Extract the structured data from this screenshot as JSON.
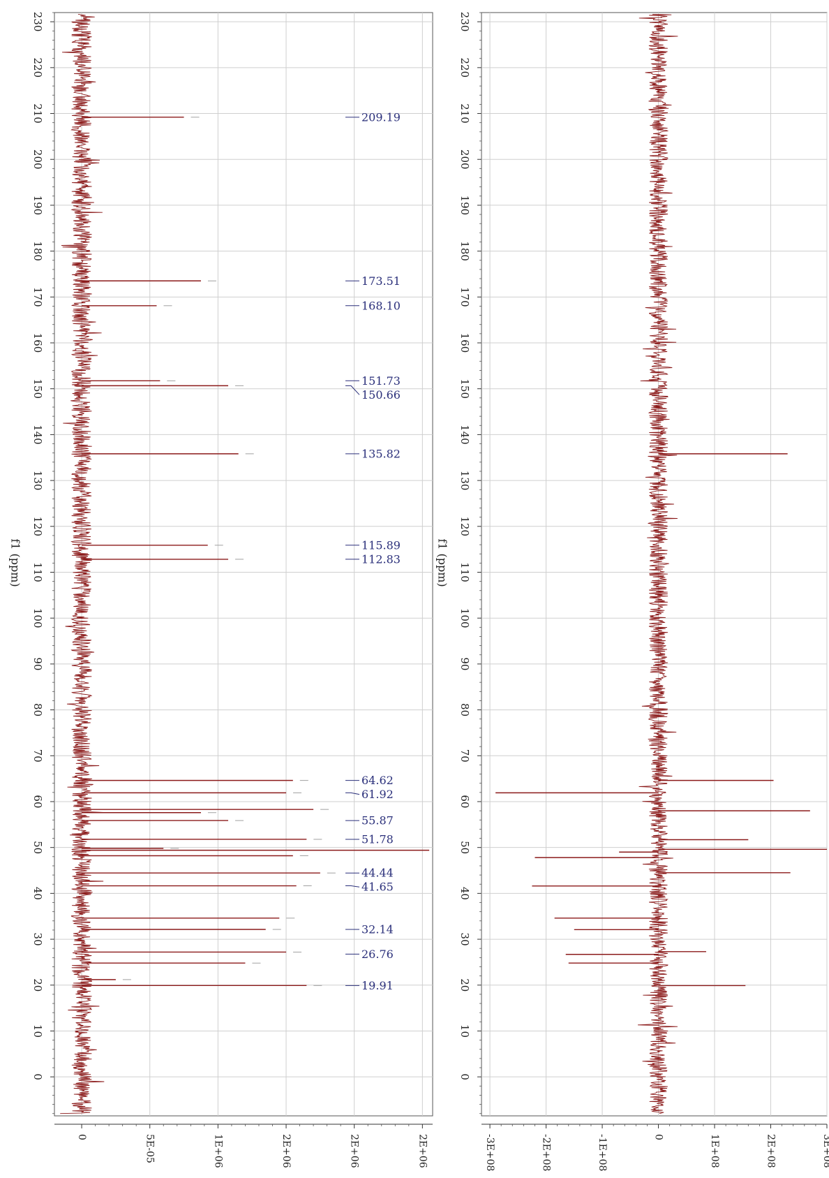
{
  "chart_data": [
    {
      "type": "line",
      "y_axis_label": "f1 (ppm)",
      "ppm_range": [
        -8.5,
        232
      ],
      "ppm_ticks": [
        230,
        220,
        210,
        200,
        190,
        180,
        170,
        160,
        150,
        140,
        130,
        120,
        110,
        100,
        90,
        80,
        70,
        60,
        50,
        40,
        30,
        20,
        10,
        0
      ],
      "intensity_ticks": [
        {
          "value": 0,
          "label": "0"
        },
        {
          "value": 1,
          "label": "5E-05"
        },
        {
          "value": 2,
          "label": "1E+06"
        },
        {
          "value": 3,
          "label": "2E+06"
        },
        {
          "value": 4,
          "label": "2E+06"
        },
        {
          "value": 5,
          "label": "2E+06"
        }
      ],
      "intensity_range": [
        -0.4,
        5.15
      ],
      "grid": true,
      "line_color": "#8b1a1a",
      "label_color": "#2a2f7a",
      "noise_amplitude": 0.15,
      "peaks": [
        {
          "ppm": 209.19,
          "value": 1.5
        },
        {
          "ppm": 173.51,
          "value": 1.75
        },
        {
          "ppm": 168.1,
          "value": 1.1
        },
        {
          "ppm": 151.73,
          "value": 1.15
        },
        {
          "ppm": 150.66,
          "value": 2.15
        },
        {
          "ppm": 135.82,
          "value": 2.3
        },
        {
          "ppm": 115.89,
          "value": 1.85
        },
        {
          "ppm": 112.83,
          "value": 2.15
        },
        {
          "ppm": 64.62,
          "value": 3.1
        },
        {
          "ppm": 61.92,
          "value": 3.0
        },
        {
          "ppm": 58.3,
          "value": 3.4
        },
        {
          "ppm": 57.6,
          "value": 1.75
        },
        {
          "ppm": 55.87,
          "value": 2.15
        },
        {
          "ppm": 51.78,
          "value": 3.3
        },
        {
          "ppm": 49.8,
          "value": 1.2
        },
        {
          "ppm": 49.4,
          "value": 5.1
        },
        {
          "ppm": 48.2,
          "value": 3.1
        },
        {
          "ppm": 44.44,
          "value": 3.5
        },
        {
          "ppm": 41.65,
          "value": 3.15
        },
        {
          "ppm": 34.6,
          "value": 2.9
        },
        {
          "ppm": 32.14,
          "value": 2.7
        },
        {
          "ppm": 27.2,
          "value": 3.0
        },
        {
          "ppm": 24.8,
          "value": 2.4
        },
        {
          "ppm": 21.2,
          "value": 0.5
        },
        {
          "ppm": 19.91,
          "value": 3.3
        }
      ],
      "peak_labels": [
        "209.19",
        "173.51",
        "168.10",
        "151.73",
        "150.66",
        "135.82",
        "115.89",
        "112.83",
        "64.62",
        "61.92",
        "55.87",
        "51.78",
        "44.44",
        "41.65",
        "32.14",
        "26.76",
        "19.91"
      ]
    },
    {
      "type": "line",
      "y_axis_label": "f1 (ppm)",
      "ppm_range": [
        -8.5,
        232
      ],
      "ppm_ticks": [
        230,
        220,
        210,
        200,
        190,
        180,
        170,
        160,
        150,
        140,
        130,
        120,
        110,
        100,
        90,
        80,
        70,
        60,
        50,
        40,
        30,
        20,
        10,
        0
      ],
      "intensity_ticks": [
        {
          "value": -3,
          "label": "-3E+08"
        },
        {
          "value": -2,
          "label": "-2E+08"
        },
        {
          "value": -1,
          "label": "-1E+08"
        },
        {
          "value": 0,
          "label": "0"
        },
        {
          "value": 1,
          "label": "1E+08"
        },
        {
          "value": 2,
          "label": "2E+08"
        },
        {
          "value": 3,
          "label": "3E+08"
        }
      ],
      "intensity_range": [
        -3.15,
        3.0
      ],
      "grid": true,
      "line_color": "#8b1a1a",
      "noise_amplitude": 0.17,
      "peaks": [
        {
          "ppm": 135.82,
          "value": 2.3
        },
        {
          "ppm": 64.62,
          "value": 2.05
        },
        {
          "ppm": 61.92,
          "value": -2.9
        },
        {
          "ppm": 58.0,
          "value": 2.7
        },
        {
          "ppm": 51.7,
          "value": 1.6
        },
        {
          "ppm": 49.6,
          "value": 3.0
        },
        {
          "ppm": 49.0,
          "value": -0.7
        },
        {
          "ppm": 47.8,
          "value": -2.2
        },
        {
          "ppm": 44.5,
          "value": 2.35
        },
        {
          "ppm": 41.6,
          "value": -2.25
        },
        {
          "ppm": 34.6,
          "value": -1.85
        },
        {
          "ppm": 32.1,
          "value": -1.5
        },
        {
          "ppm": 27.3,
          "value": 0.85
        },
        {
          "ppm": 26.7,
          "value": -1.65
        },
        {
          "ppm": 24.8,
          "value": -1.6
        },
        {
          "ppm": 19.9,
          "value": 1.55
        }
      ]
    }
  ]
}
